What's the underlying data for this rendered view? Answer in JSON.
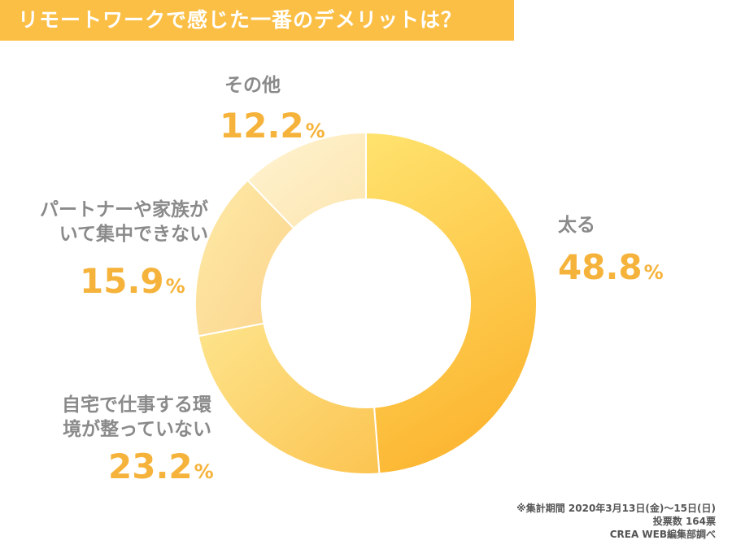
{
  "title": "リモートワークで感じた一番のデメリットは？",
  "chart_data": {
    "type": "pie",
    "donut": true,
    "categories": [
      "太る",
      "自宅で仕事する環境が整っていない",
      "パートナーや家族がいて集中できない",
      "その他"
    ],
    "label_lines": [
      [
        "太る"
      ],
      [
        "自宅で仕事する環",
        "境が整っていない"
      ],
      [
        "パートナーや家族が",
        "いて集中できない"
      ],
      [
        "その他"
      ]
    ],
    "values": [
      48.8,
      23.2,
      15.9,
      12.2
    ],
    "value_labels": [
      "48.8",
      "23.2",
      "15.9",
      "12.2"
    ],
    "unit": "%",
    "colors": [
      "#fcc23a",
      "#fdd36b",
      "#fde3a0",
      "#fef0c8"
    ],
    "order": "clockwise from top"
  },
  "notes": [
    "※集計期間 2020年3月13日(金)〜15日(日)",
    "投票数 164票",
    "CREA WEB編集部調べ"
  ]
}
